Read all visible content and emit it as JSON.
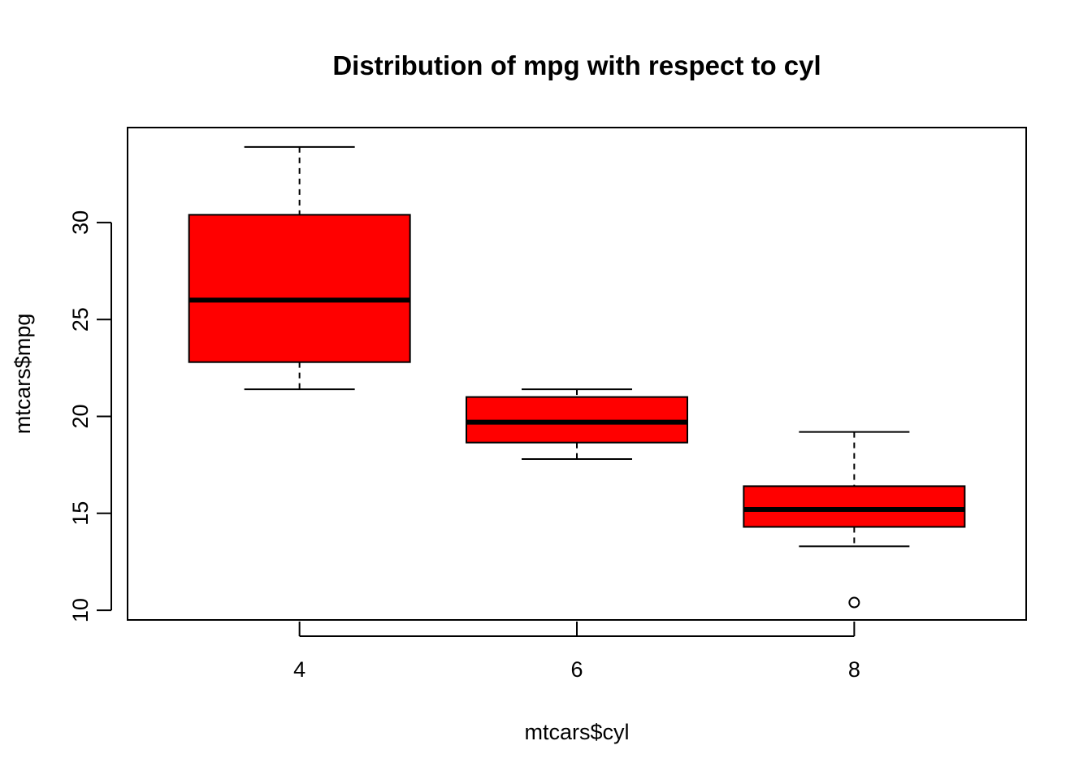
{
  "chart_data": {
    "type": "boxplot",
    "title": "Distribution of mpg with respect to cyl",
    "xlabel": "mtcars$cyl",
    "ylabel": "mtcars$mpg",
    "categories": [
      "4",
      "6",
      "8"
    ],
    "ylim": [
      9.5,
      34.9
    ],
    "yticks": [
      10,
      15,
      20,
      25,
      30
    ],
    "box_color": "#ff0000",
    "boxes": [
      {
        "category": "4",
        "whisker_low": 21.4,
        "q1": 22.8,
        "median": 26.0,
        "q3": 30.4,
        "whisker_high": 33.9,
        "outliers": []
      },
      {
        "category": "6",
        "whisker_low": 17.8,
        "q1": 18.65,
        "median": 19.7,
        "q3": 21.0,
        "whisker_high": 21.4,
        "outliers": []
      },
      {
        "category": "8",
        "whisker_low": 13.3,
        "q1": 14.3,
        "median": 15.2,
        "q3": 16.4,
        "whisker_high": 19.2,
        "outliers": [
          10.4
        ]
      }
    ]
  }
}
